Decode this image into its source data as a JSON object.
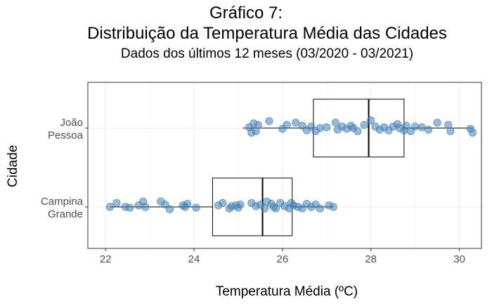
{
  "chart_data": {
    "type": "scatter",
    "title": "Gráfico 7:",
    "subtitle": "Distribuição da Temperatura Média das Cidades",
    "caption": "Dados dos últimos 12 meses (03/2020 - 03/2021)",
    "xlabel": "Temperatura Média (ºC)",
    "ylabel": "Cidade",
    "xlim": [
      21.6,
      30.5
    ],
    "x_ticks": [
      "22",
      "24",
      "26",
      "28",
      "30"
    ],
    "x_tick_values": [
      22,
      24,
      26,
      28,
      30
    ],
    "categories": [
      [
        "João",
        "Pessoa"
      ],
      [
        "Campina",
        "Grande"
      ]
    ],
    "grid": true,
    "point_color": "#4682b4",
    "series": [
      {
        "category_index": 0,
        "box": {
          "whisker_low": 25.1,
          "q1": 26.7,
          "median": 27.95,
          "q3": 28.75,
          "whisker_high": 30.3
        },
        "points": [
          {
            "x": 25.25,
            "j": 0.05
          },
          {
            "x": 25.3,
            "j": -0.3
          },
          {
            "x": 25.35,
            "j": 0.3
          },
          {
            "x": 25.45,
            "j": 0.2
          },
          {
            "x": 25.4,
            "j": -0.2
          },
          {
            "x": 25.7,
            "j": 0.45
          },
          {
            "x": 26.0,
            "j": -0.05
          },
          {
            "x": 26.1,
            "j": 0.2
          },
          {
            "x": 26.3,
            "j": 0.35
          },
          {
            "x": 26.45,
            "j": 0.15
          },
          {
            "x": 26.55,
            "j": -0.15
          },
          {
            "x": 26.65,
            "j": 0.1
          },
          {
            "x": 26.75,
            "j": -0.2
          },
          {
            "x": 26.85,
            "j": 0.0
          },
          {
            "x": 27.0,
            "j": 0.05
          },
          {
            "x": 27.2,
            "j": 0.35
          },
          {
            "x": 27.25,
            "j": -0.1
          },
          {
            "x": 27.35,
            "j": 0.1
          },
          {
            "x": 27.45,
            "j": -0.05
          },
          {
            "x": 27.55,
            "j": 0.15
          },
          {
            "x": 27.6,
            "j": 0.0
          },
          {
            "x": 27.7,
            "j": -0.2
          },
          {
            "x": 27.85,
            "j": 0.2
          },
          {
            "x": 28.0,
            "j": 0.5
          },
          {
            "x": 28.1,
            "j": 0.1
          },
          {
            "x": 28.2,
            "j": -0.1
          },
          {
            "x": 28.3,
            "j": 0.05
          },
          {
            "x": 28.4,
            "j": -0.15
          },
          {
            "x": 28.5,
            "j": 0.1
          },
          {
            "x": 28.6,
            "j": 0.25
          },
          {
            "x": 28.65,
            "j": 0.0
          },
          {
            "x": 28.75,
            "j": -0.15
          },
          {
            "x": 28.8,
            "j": 0.15
          },
          {
            "x": 28.9,
            "j": -0.2
          },
          {
            "x": 29.0,
            "j": 0.1
          },
          {
            "x": 29.15,
            "j": 0.05
          },
          {
            "x": 29.3,
            "j": -0.1
          },
          {
            "x": 29.5,
            "j": 0.35
          },
          {
            "x": 29.75,
            "j": 0.2
          },
          {
            "x": 29.8,
            "j": -0.2
          },
          {
            "x": 30.25,
            "j": -0.05
          },
          {
            "x": 30.3,
            "j": -0.3
          }
        ]
      },
      {
        "category_index": 1,
        "box": {
          "whisker_low": 22.1,
          "q1": 24.42,
          "median": 25.55,
          "q3": 26.22,
          "whisker_high": 27.15
        },
        "points": [
          {
            "x": 22.1,
            "j": 0.0
          },
          {
            "x": 22.25,
            "j": 0.25
          },
          {
            "x": 22.45,
            "j": 0.0
          },
          {
            "x": 22.55,
            "j": -0.05
          },
          {
            "x": 22.75,
            "j": 0.1
          },
          {
            "x": 22.85,
            "j": 0.35
          },
          {
            "x": 22.9,
            "j": 0.0
          },
          {
            "x": 23.25,
            "j": 0.35
          },
          {
            "x": 23.35,
            "j": 0.15
          },
          {
            "x": 23.45,
            "j": -0.15
          },
          {
            "x": 23.75,
            "j": 0.1
          },
          {
            "x": 23.8,
            "j": 0.0
          },
          {
            "x": 23.85,
            "j": 0.2
          },
          {
            "x": 24.05,
            "j": -0.05
          },
          {
            "x": 24.55,
            "j": 0.1
          },
          {
            "x": 24.65,
            "j": 0.25
          },
          {
            "x": 24.8,
            "j": -0.1
          },
          {
            "x": 24.85,
            "j": 0.05
          },
          {
            "x": 24.95,
            "j": 0.1
          },
          {
            "x": 25.0,
            "j": -0.05
          },
          {
            "x": 25.05,
            "j": 0.15
          },
          {
            "x": 25.3,
            "j": 0.25
          },
          {
            "x": 25.4,
            "j": 0.05
          },
          {
            "x": 25.5,
            "j": 0.15
          },
          {
            "x": 25.6,
            "j": -0.1
          },
          {
            "x": 25.65,
            "j": 0.35
          },
          {
            "x": 25.75,
            "j": 0.2
          },
          {
            "x": 25.8,
            "j": 0.0
          },
          {
            "x": 25.85,
            "j": -0.1
          },
          {
            "x": 25.95,
            "j": 0.25
          },
          {
            "x": 26.05,
            "j": 0.05
          },
          {
            "x": 26.15,
            "j": -0.1
          },
          {
            "x": 26.2,
            "j": 0.25
          },
          {
            "x": 26.25,
            "j": 0.1
          },
          {
            "x": 26.35,
            "j": 0.0
          },
          {
            "x": 26.45,
            "j": -0.1
          },
          {
            "x": 26.55,
            "j": 0.2
          },
          {
            "x": 26.65,
            "j": 0.0
          },
          {
            "x": 26.75,
            "j": 0.15
          },
          {
            "x": 26.85,
            "j": -0.1
          },
          {
            "x": 27.05,
            "j": 0.1
          },
          {
            "x": 27.15,
            "j": 0.0
          }
        ]
      }
    ]
  }
}
